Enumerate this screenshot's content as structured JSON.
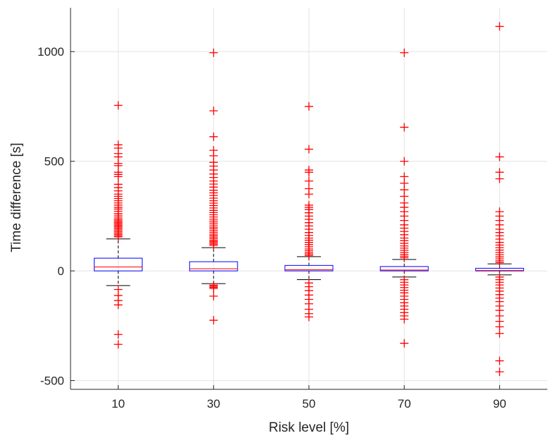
{
  "chart_data": {
    "type": "boxplot",
    "xlabel": "Risk level [%]",
    "ylabel": "Time difference [s]",
    "ylim": [
      -540,
      1200
    ],
    "yticks": [
      -500,
      0,
      500,
      1000
    ],
    "grid": true,
    "box_color": "#0000ff",
    "median_color": "#ff0000",
    "whisker_color": "#000000",
    "outlier_color": "#ff0000",
    "categories": [
      "10",
      "30",
      "50",
      "70",
      "90"
    ],
    "boxes": [
      {
        "label": "10",
        "q1": 0,
        "median": 18,
        "q3": 58,
        "whisker_low": -67,
        "whisker_high": 146,
        "outliers": [
          755,
          575,
          560,
          535,
          520,
          490,
          480,
          450,
          440,
          430,
          395,
          380,
          365,
          350,
          340,
          330,
          320,
          310,
          300,
          290,
          282,
          272,
          262,
          254,
          246,
          238,
          232,
          226,
          220,
          214,
          208,
          202,
          196,
          190,
          184,
          178,
          172,
          166,
          160,
          155,
          -85,
          -112,
          -135,
          -155,
          -290,
          -335
        ]
      },
      {
        "label": "30",
        "q1": 0,
        "median": 10,
        "q3": 42,
        "whisker_low": -58,
        "whisker_high": 106,
        "outliers": [
          995,
          730,
          612,
          550,
          525,
          495,
          478,
          460,
          442,
          426,
          410,
          396,
          382,
          368,
          356,
          344,
          332,
          320,
          309,
          298,
          287,
          276,
          266,
          256,
          246,
          236,
          227,
          218,
          209,
          200,
          192,
          184,
          176,
          168,
          161,
          154,
          147,
          140,
          134,
          128,
          122,
          116,
          -65,
          -70,
          -75,
          -80,
          -115,
          -225
        ]
      },
      {
        "label": "50",
        "q1": 0,
        "median": 5,
        "q3": 25,
        "whisker_low": -40,
        "whisker_high": 65,
        "outliers": [
          750,
          555,
          460,
          450,
          410,
          375,
          350,
          300,
          290,
          280,
          265,
          250,
          235,
          220,
          205,
          190,
          175,
          162,
          150,
          140,
          130,
          120,
          110,
          100,
          92,
          84,
          77,
          70,
          -55,
          -72,
          -90,
          -110,
          -130,
          -150,
          -175,
          -195,
          -210
        ]
      },
      {
        "label": "70",
        "q1": 0,
        "median": 4,
        "q3": 20,
        "whisker_low": -28,
        "whisker_high": 52,
        "outliers": [
          995,
          655,
          500,
          430,
          400,
          370,
          340,
          310,
          290,
          270,
          250,
          230,
          210,
          195,
          180,
          165,
          150,
          138,
          126,
          114,
          104,
          94,
          84,
          75,
          67,
          60,
          -40,
          -52,
          -64,
          -76,
          -88,
          -100,
          -115,
          -130,
          -145,
          -160,
          -175,
          -190,
          -205,
          -220,
          -330
        ]
      },
      {
        "label": "90",
        "q1": 0,
        "median": 2,
        "q3": 12,
        "whisker_low": -18,
        "whisker_high": 32,
        "outliers": [
          1115,
          520,
          450,
          420,
          270,
          250,
          230,
          210,
          190,
          175,
          160,
          145,
          130,
          118,
          106,
          95,
          84,
          74,
          64,
          55,
          46,
          38,
          -28,
          -40,
          -52,
          -64,
          -78,
          -92,
          -108,
          -124,
          -140,
          -160,
          -180,
          -205,
          -230,
          -255,
          -285,
          -410,
          -460
        ]
      }
    ]
  }
}
